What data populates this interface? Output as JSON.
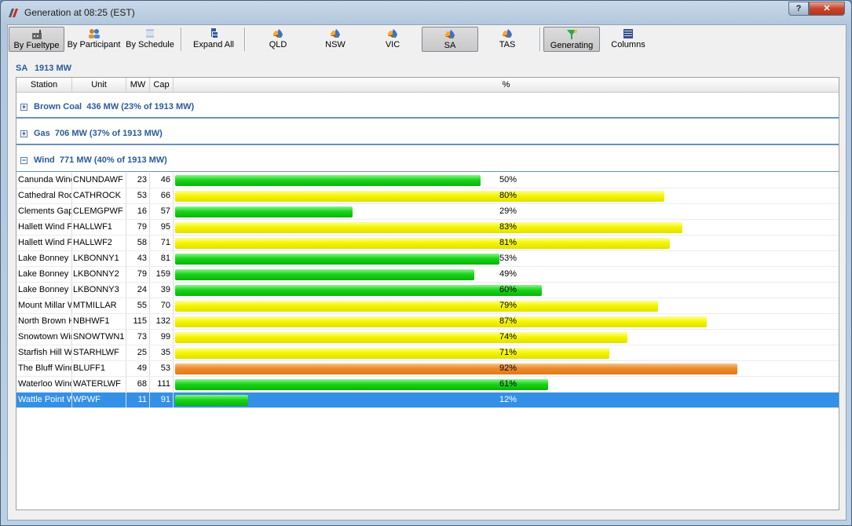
{
  "window": {
    "title": "Generation at 08:25 (EST)",
    "help_label": "?",
    "close_label": "✕"
  },
  "toolbar": {
    "buttons": [
      {
        "label": "By Fueltype",
        "icon": "fueltype-icon"
      },
      {
        "label": "By Participant",
        "icon": "participant-icon"
      },
      {
        "label": "By Schedule",
        "icon": "schedule-icon"
      },
      {
        "label": "Expand All",
        "icon": "expand-all-icon"
      },
      {
        "label": "QLD",
        "icon": "australia-map-icon"
      },
      {
        "label": "NSW",
        "icon": "australia-map-icon"
      },
      {
        "label": "VIC",
        "icon": "australia-map-icon"
      },
      {
        "label": "SA",
        "icon": "australia-map-icon"
      },
      {
        "label": "TAS",
        "icon": "australia-map-icon"
      },
      {
        "label": "Generating",
        "icon": "filter-icon"
      },
      {
        "label": "Columns",
        "icon": "columns-icon"
      }
    ]
  },
  "region": {
    "name": "SA",
    "total": "1913 MW"
  },
  "columns": [
    "Station",
    "Unit",
    "MW",
    "Cap",
    "%"
  ],
  "groups": [
    {
      "name": "Brown Coal",
      "summary": "436 MW (23% of 1913 MW)",
      "expanded": false,
      "toggle": "+"
    },
    {
      "name": "Gas",
      "summary": "706 MW (37% of 1913 MW)",
      "expanded": false,
      "toggle": "+"
    },
    {
      "name": "Wind",
      "summary": "771 MW (40% of 1913 MW)",
      "expanded": true,
      "toggle": "−"
    }
  ],
  "rows": [
    {
      "station": "Canunda Wind",
      "unit": "CNUNDAWF",
      "mw": "23",
      "cap": "46",
      "pct": "50%",
      "frac": 0.5,
      "color": "green"
    },
    {
      "station": "Cathedral Rocks",
      "unit": "CATHROCK",
      "mw": "53",
      "cap": "66",
      "pct": "80%",
      "frac": 0.8,
      "color": "yellow"
    },
    {
      "station": "Clements Gap",
      "unit": "CLEMGPWF",
      "mw": "16",
      "cap": "57",
      "pct": "29%",
      "frac": 0.29,
      "color": "green"
    },
    {
      "station": "Hallett Wind F",
      "unit": "HALLWF1",
      "mw": "79",
      "cap": "95",
      "pct": "83%",
      "frac": 0.83,
      "color": "yellow"
    },
    {
      "station": "Hallett Wind F",
      "unit": "HALLWF2",
      "mw": "58",
      "cap": "71",
      "pct": "81%",
      "frac": 0.81,
      "color": "yellow"
    },
    {
      "station": "Lake Bonney S",
      "unit": "LKBONNY1",
      "mw": "43",
      "cap": "81",
      "pct": "53%",
      "frac": 0.53,
      "color": "green"
    },
    {
      "station": "Lake Bonney S",
      "unit": "LKBONNY2",
      "mw": "79",
      "cap": "159",
      "pct": "49%",
      "frac": 0.49,
      "color": "green"
    },
    {
      "station": "Lake Bonney S",
      "unit": "LKBONNY3",
      "mw": "24",
      "cap": "39",
      "pct": "60%",
      "frac": 0.6,
      "color": "green"
    },
    {
      "station": "Mount Millar W",
      "unit": "MTMILLAR",
      "mw": "55",
      "cap": "70",
      "pct": "79%",
      "frac": 0.79,
      "color": "yellow"
    },
    {
      "station": "North Brown H",
      "unit": "NBHWF1",
      "mw": "115",
      "cap": "132",
      "pct": "87%",
      "frac": 0.87,
      "color": "yellow"
    },
    {
      "station": "Snowtown Win",
      "unit": "SNOWTWN1",
      "mw": "73",
      "cap": "99",
      "pct": "74%",
      "frac": 0.74,
      "color": "yellow"
    },
    {
      "station": "Starfish Hill Wi",
      "unit": "STARHLWF",
      "mw": "25",
      "cap": "35",
      "pct": "71%",
      "frac": 0.71,
      "color": "yellow"
    },
    {
      "station": "The Bluff Wind",
      "unit": "BLUFF1",
      "mw": "49",
      "cap": "53",
      "pct": "92%",
      "frac": 0.92,
      "color": "orange"
    },
    {
      "station": "Waterloo Wind",
      "unit": "WATERLWF",
      "mw": "68",
      "cap": "111",
      "pct": "61%",
      "frac": 0.61,
      "color": "green"
    },
    {
      "station": "Wattle Point W",
      "unit": "WPWF",
      "mw": "11",
      "cap": "91",
      "pct": "12%",
      "frac": 0.12,
      "color": "green",
      "selected": true
    }
  ]
}
